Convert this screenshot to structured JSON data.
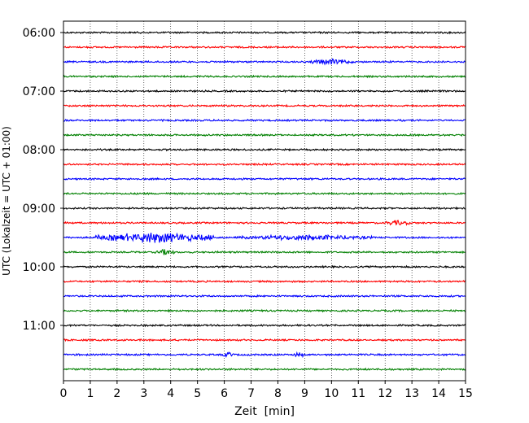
{
  "chart_data": {
    "type": "line",
    "title": "",
    "xlabel": "Zeit  [min]",
    "ylabel": "UTC (Lokalzeit = UTC + 01:00)",
    "xlim": [
      0,
      15
    ],
    "x_ticks": [
      "0",
      "1",
      "2",
      "3",
      "4",
      "5",
      "6",
      "7",
      "8",
      "9",
      "10",
      "11",
      "12",
      "13",
      "14",
      "15"
    ],
    "y_ticks": [
      "06:00",
      "07:00",
      "08:00",
      "09:00",
      "10:00",
      "11:00"
    ],
    "grid": "vertical dotted",
    "row_duration_min": 15,
    "row_colors": [
      "#000000",
      "#ff0000",
      "#0000ff",
      "#008000"
    ],
    "trace_start_times_utc": [
      "06:00",
      "06:15",
      "06:30",
      "06:45",
      "07:00",
      "07:15",
      "07:30",
      "07:45",
      "08:00",
      "08:15",
      "08:30",
      "08:45",
      "09:00",
      "09:15",
      "09:30",
      "09:45",
      "10:00",
      "10:15",
      "10:30",
      "10:45",
      "11:00",
      "11:15",
      "11:30",
      "11:45"
    ],
    "events": [
      {
        "trace": "09:30",
        "start_min": 1.2,
        "end_min": 5.6,
        "amplitude": "high"
      },
      {
        "trace": "09:30",
        "start_min": 6.5,
        "end_min": 11.5,
        "amplitude": "medium"
      },
      {
        "trace": "06:30",
        "start_min": 9.2,
        "end_min": 10.8,
        "amplitude": "medium"
      },
      {
        "trace": "09:45",
        "start_min": 3.4,
        "end_min": 4.2,
        "amplitude": "medium"
      },
      {
        "trace": "11:30",
        "start_min": 5.9,
        "end_min": 6.4,
        "amplitude": "medium"
      },
      {
        "trace": "11:30",
        "start_min": 8.6,
        "end_min": 9.0,
        "amplitude": "medium"
      },
      {
        "trace": "09:15",
        "start_min": 12.0,
        "end_min": 12.9,
        "amplitude": "medium"
      }
    ]
  }
}
